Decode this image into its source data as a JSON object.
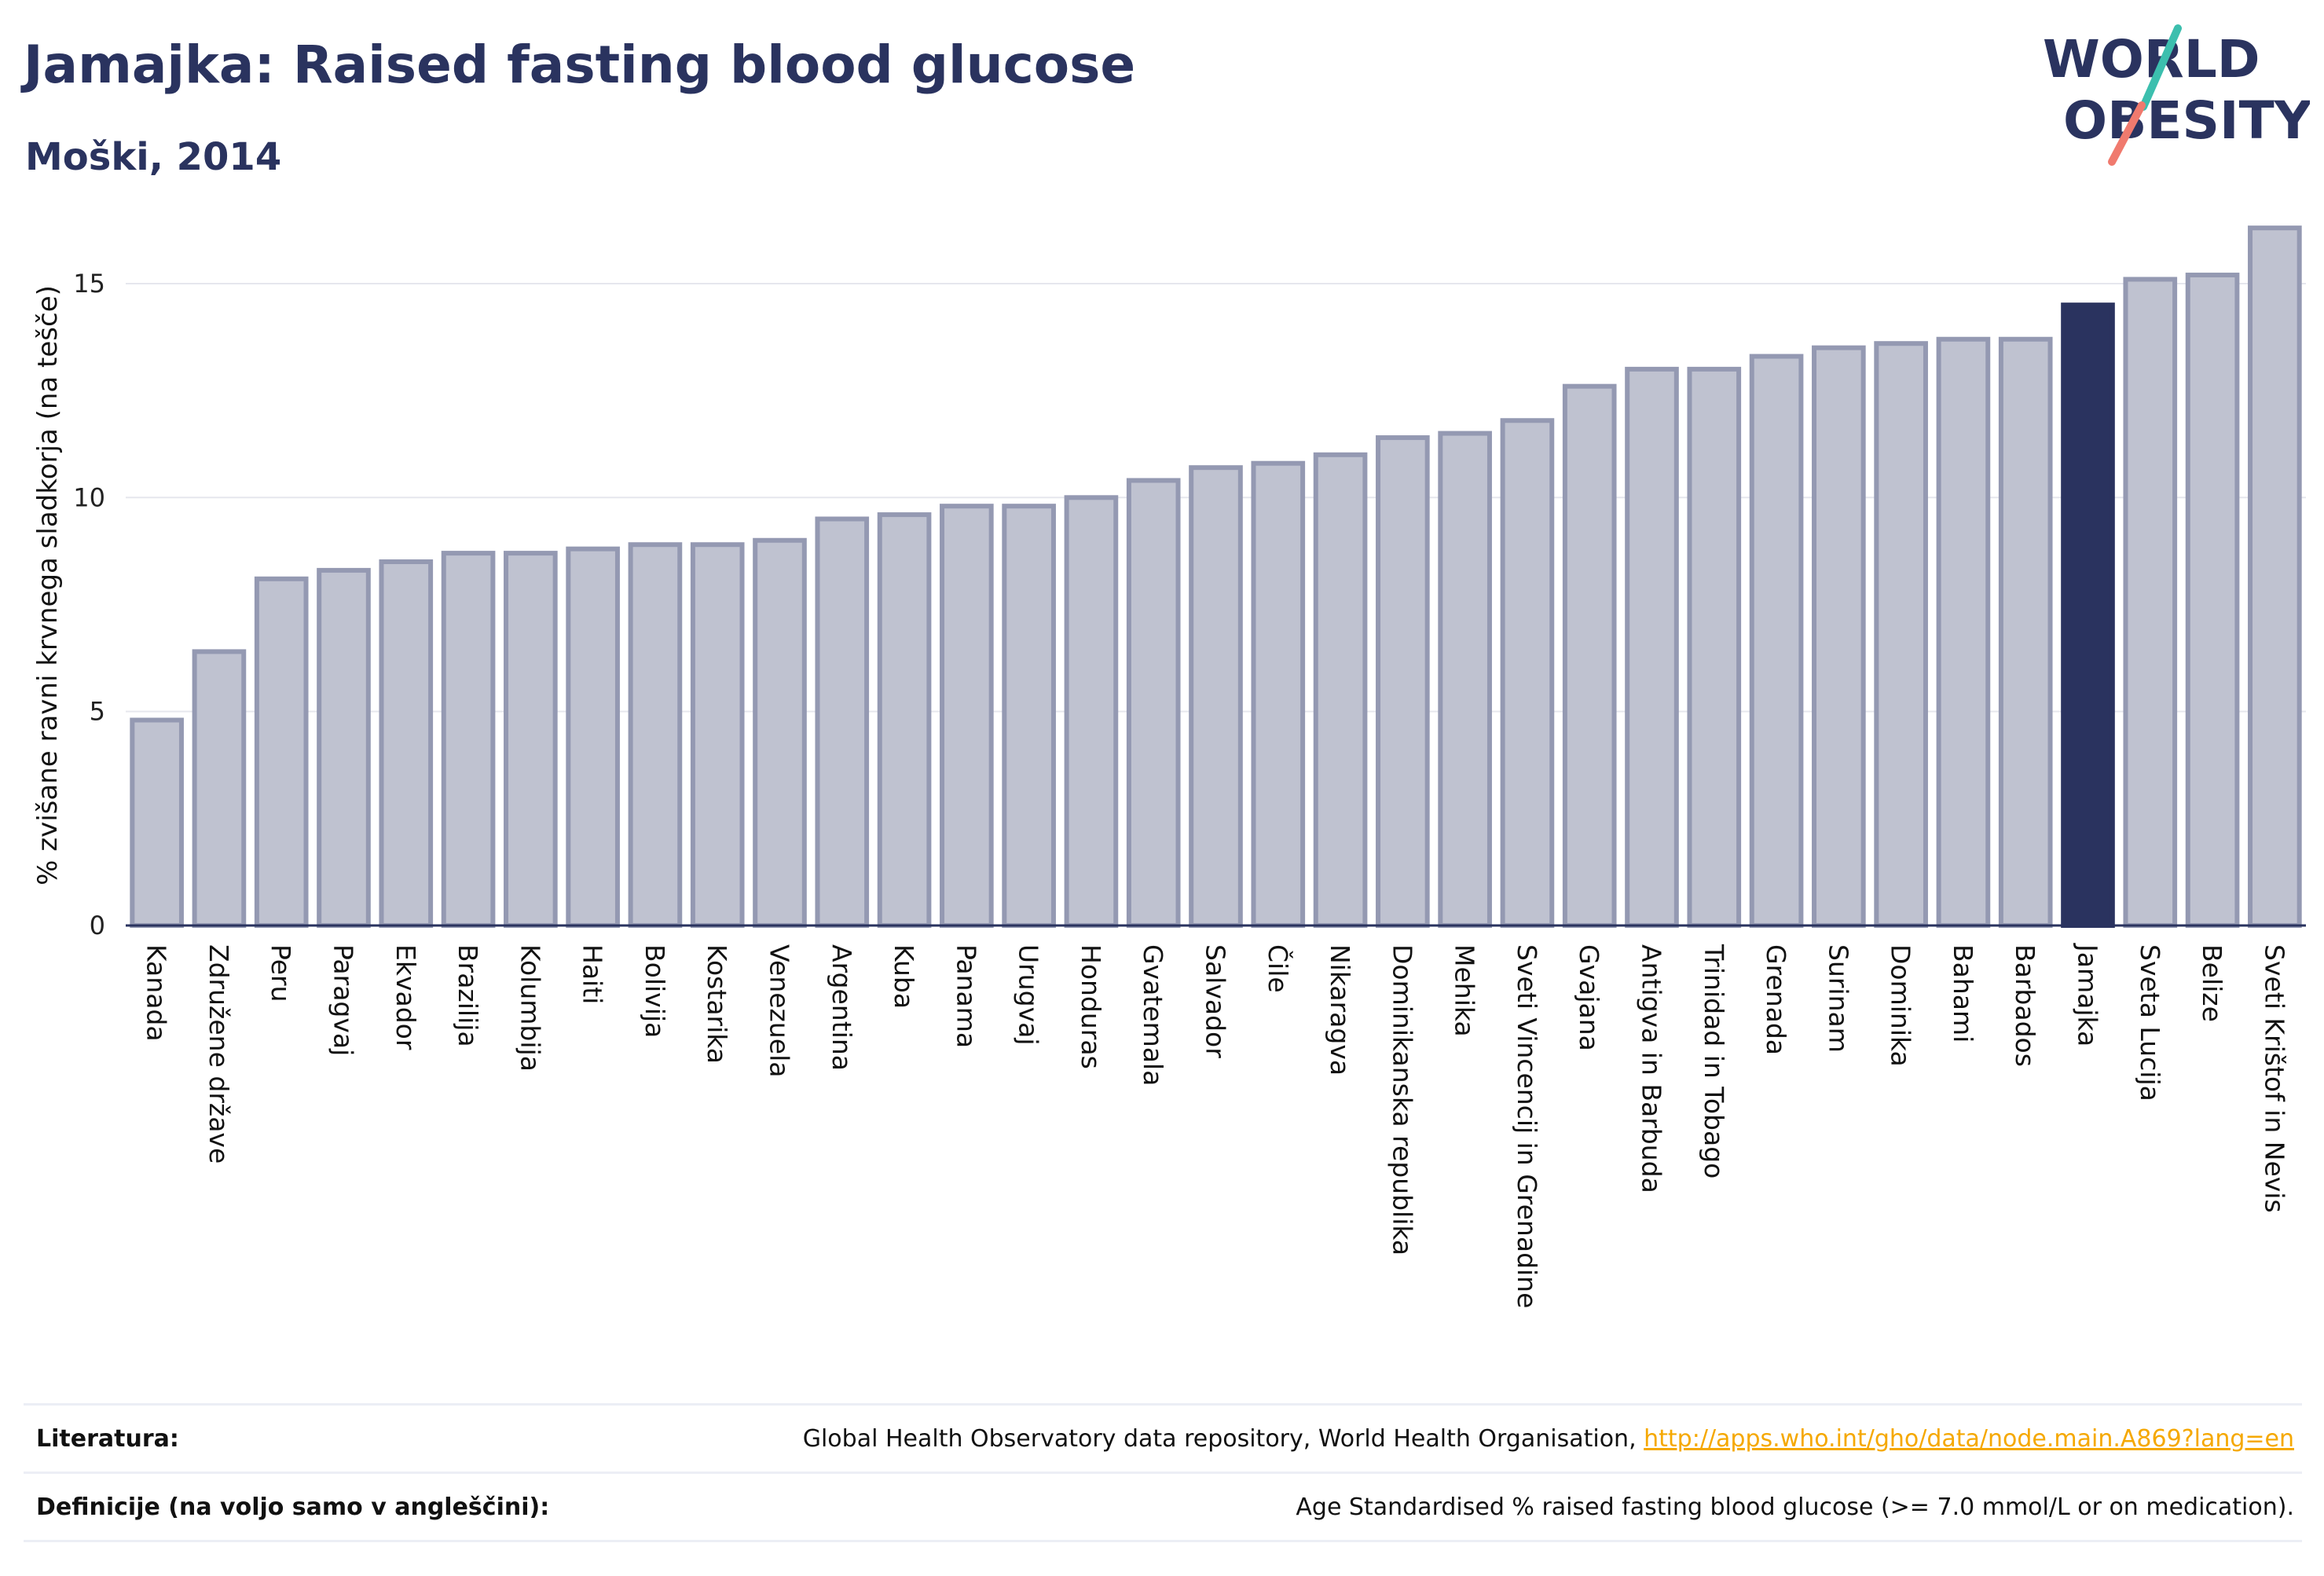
{
  "header": {
    "title": "Jamajka: Raised fasting blood glucose",
    "subtitle": "Moški, 2014"
  },
  "logo": {
    "line1": "WORLD",
    "line2": "OBESITY",
    "text_color": "#2a335f",
    "slash_colors": [
      "#3cbfae",
      "#f07a6e"
    ]
  },
  "colors": {
    "bar_fill": "#bfc2d0",
    "bar_stroke": "#9499b2",
    "highlight": "#2a335f",
    "grid": "#e6e7ee",
    "link": "#f5a800"
  },
  "chart_data": {
    "type": "bar",
    "ylabel": "% zvišane ravni krvnega sladkorja (na tešče)",
    "ylim": [
      0,
      17
    ],
    "yticks": [
      0,
      5,
      10,
      15
    ],
    "grid": true,
    "highlight": "Jamajka",
    "categories": [
      "Kanada",
      "Združene države",
      "Peru",
      "Paragvaj",
      "Ekvador",
      "Brazilija",
      "Kolumbija",
      "Haiti",
      "Bolivija",
      "Kostarika",
      "Venezuela",
      "Argentina",
      "Kuba",
      "Panama",
      "Urugvaj",
      "Honduras",
      "Gvatemala",
      "Salvador",
      "Čile",
      "Nikaragva",
      "Dominikanska republika",
      "Mehika",
      "Sveti Vincencij in Grenadine",
      "Gvajana",
      "Antigva in Barbuda",
      "Trinidad in Tobago",
      "Grenada",
      "Surinam",
      "Dominika",
      "Bahami",
      "Barbados",
      "Jamajka",
      "Sveta Lucija",
      "Belize",
      "Sveti Krištof in Nevis"
    ],
    "values": [
      4.8,
      6.4,
      8.1,
      8.3,
      8.5,
      8.7,
      8.7,
      8.8,
      8.9,
      8.9,
      9.0,
      9.5,
      9.6,
      9.8,
      9.8,
      10.0,
      10.4,
      10.7,
      10.8,
      11.0,
      11.4,
      11.5,
      11.8,
      12.6,
      13.0,
      13.0,
      13.3,
      13.5,
      13.6,
      13.7,
      13.7,
      14.5,
      15.1,
      15.2,
      16.3
    ]
  },
  "footer": {
    "references_label": "Literatura:",
    "references_text": "Global Health Observatory data repository, World Health Organisation, ",
    "references_link": "http://apps.who.int/gho/data/node.main.A869?lang=en",
    "definitions_label": "Definicije (na voljo samo v angleščini):",
    "definitions_text": "Age Standardised % raised fasting blood glucose (>= 7.0 mmol/L or on medication)."
  }
}
